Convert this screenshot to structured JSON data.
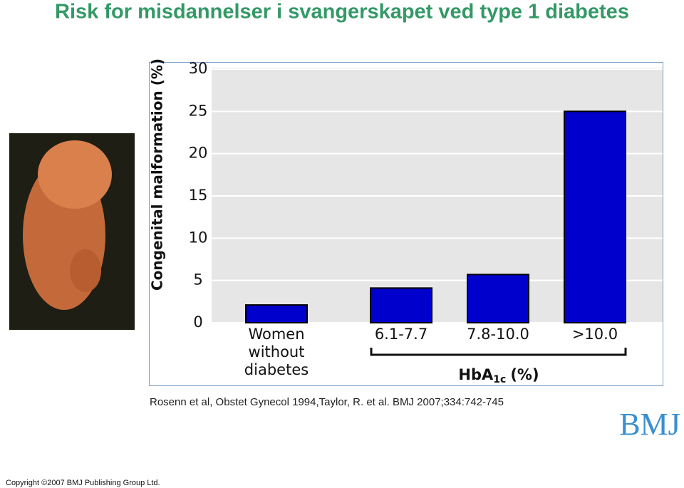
{
  "title": "Risk for misdannelser i svangerskapet ved type 1 diabetes",
  "chart_data": {
    "type": "bar",
    "ylabel": "Congenital malformation (%)",
    "xlabel": {
      "main": "HbA",
      "sub": "1c",
      "unit": "(%)"
    },
    "categories": [
      "Women without diabetes",
      "6.1-7.7",
      "7.8-10.0",
      ">10.0"
    ],
    "values": [
      2.1,
      4.1,
      5.7,
      25
    ],
    "color": "#0000cc",
    "ylim": [
      0,
      30
    ],
    "yticks": [
      0,
      5,
      10,
      15,
      20,
      25,
      30
    ],
    "grid": true
  },
  "citation": "Rosenn et al, Obstet Gynecol 1994,Taylor, R. et al. BMJ 2007;334:742-745",
  "logo": "BMJ",
  "copyright": "Copyright ©2007 BMJ Publishing Group Ltd."
}
